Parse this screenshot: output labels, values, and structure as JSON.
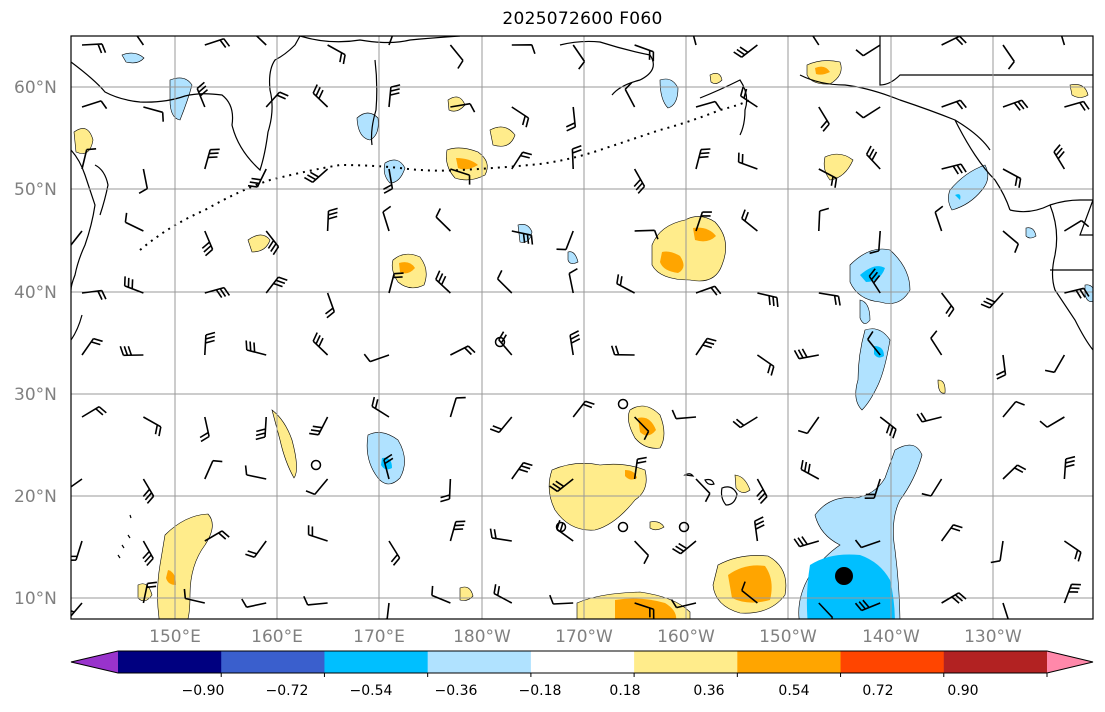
{
  "title": "2025072600 F060",
  "latitude_labels": [
    "60°N",
    "50°N",
    "40°N",
    "30°N",
    "20°N",
    "10°N"
  ],
  "longitude_labels": [
    "150°E",
    "160°E",
    "170°E",
    "180°W",
    "170°W",
    "160°W",
    "150°W",
    "140°W",
    "130°W"
  ],
  "colorbar": {
    "colors": [
      "#9933cc",
      "#000080",
      "#3a5fcd",
      "#00bfff",
      "#b0e2ff",
      "#ffffff",
      "#ffec8b",
      "#ffa500",
      "#ff4500",
      "#b22222",
      "#ff88aa"
    ],
    "tick_labels": [
      "−0.90",
      "−0.72",
      "−0.54",
      "−0.36",
      "−0.18",
      "0.18",
      "0.36",
      "0.54",
      "0.72",
      "0.90"
    ]
  }
}
